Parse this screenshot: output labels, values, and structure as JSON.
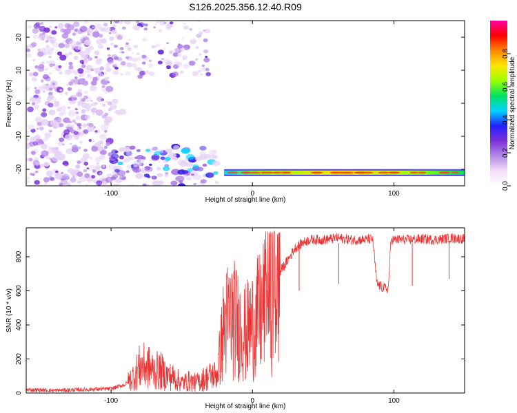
{
  "title": "S126.2025.356.12.40.R09",
  "colors": {
    "snr_line": "#ee3333",
    "colorbar": [
      "#ffffff",
      "#f2ddf7",
      "#b388e6",
      "#7a30d8",
      "#2222ff",
      "#00d4ff",
      "#00e060",
      "#9aff00",
      "#ffe600",
      "#ff8800",
      "#ff0000",
      "#ff00a0"
    ]
  },
  "chart_data": [
    {
      "type": "heatmap",
      "xlabel": "Height of straight line (km)",
      "ylabel": "Frequency (Hz)",
      "xlim": [
        -160,
        150
      ],
      "ylim": [
        -25,
        25
      ],
      "xticks": [
        -100,
        0,
        100
      ],
      "yticks": [
        -20,
        -10,
        0,
        10,
        20
      ],
      "colorbar": {
        "label": "Normalized spectral amplitude",
        "range": [
          0.0,
          1.0
        ],
        "ticks": [
          "0.0",
          "0.2",
          "0.4",
          "0.6",
          "0.8"
        ]
      },
      "features": [
        {
          "region": "diffuse noise",
          "x_range": [
            -160,
            -100
          ],
          "freq_range": [
            -25,
            25
          ],
          "amplitude": "0.05-0.3"
        },
        {
          "region": "upper-left streaks",
          "x_range": [
            -100,
            -40
          ],
          "freq_range": [
            5,
            25
          ],
          "amplitude": "0.1-0.3"
        },
        {
          "region": "scattered signal patches",
          "x_range": [
            -100,
            -30
          ],
          "freq_range": [
            -25,
            -13
          ],
          "amplitude": "0.1-0.5"
        },
        {
          "region": "carrier tone",
          "x_range": [
            -20,
            150
          ],
          "frequency": -21,
          "amplitude": "0.3-0.95"
        }
      ]
    },
    {
      "type": "line",
      "xlabel": "Height of straight line (km)",
      "ylabel": "SNR (10 * v/v)",
      "xlim": [
        -160,
        150
      ],
      "ylim": [
        0,
        970
      ],
      "xticks": [
        -100,
        0,
        100
      ],
      "yticks": [
        0,
        200,
        400,
        600,
        800
      ],
      "series": [
        {
          "x": [
            -160,
            -140,
            -120,
            -100,
            -90,
            -85,
            -80,
            -75,
            -70,
            -65,
            -60,
            -55,
            -50,
            -45,
            -40,
            -35,
            -30,
            -25,
            -20,
            -15,
            -10,
            -5,
            0,
            5,
            10,
            15,
            20,
            25,
            30,
            35,
            40,
            50,
            60,
            70,
            80,
            85,
            88,
            92,
            96,
            98,
            100,
            110,
            120,
            130,
            140,
            150
          ],
          "y": [
            20,
            15,
            20,
            25,
            50,
            90,
            150,
            160,
            130,
            130,
            100,
            90,
            60,
            70,
            60,
            80,
            100,
            110,
            400,
            450,
            400,
            350,
            400,
            450,
            550,
            650,
            720,
            780,
            850,
            880,
            900,
            900,
            910,
            900,
            900,
            905,
            640,
            620,
            610,
            900,
            900,
            900,
            905,
            900,
            910,
            905
          ]
        }
      ]
    }
  ]
}
